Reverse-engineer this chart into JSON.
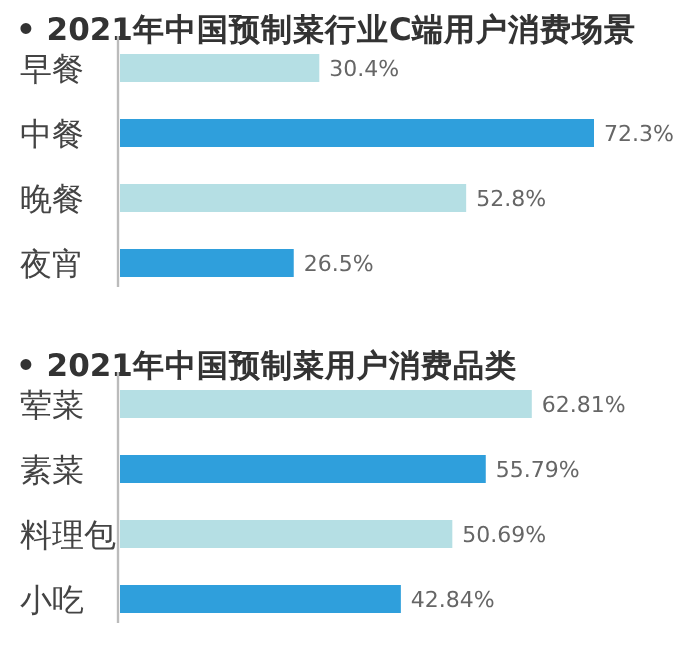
{
  "chart_data": [
    {
      "type": "bar",
      "orientation": "horizontal",
      "title": "• 2021年中国预制菜行业C端用户消费场景",
      "categories": [
        "早餐",
        "中餐",
        "晚餐",
        "夜宵"
      ],
      "values": [
        30.4,
        72.3,
        52.8,
        26.5
      ],
      "value_labels": [
        "30.4%",
        "72.3%",
        "52.8%",
        "26.5%"
      ],
      "colors": [
        "#b5dfe4",
        "#2f9fdc",
        "#b5dfe4",
        "#2f9fdc"
      ]
    },
    {
      "type": "bar",
      "orientation": "horizontal",
      "title": "• 2021年中国预制菜用户消费品类",
      "categories": [
        "荤菜",
        "素菜",
        "料理包",
        "小吃"
      ],
      "values": [
        62.81,
        55.79,
        50.69,
        42.84
      ],
      "value_labels": [
        "62.81%",
        "55.79%",
        "50.69%",
        "42.84%"
      ],
      "colors": [
        "#b5dfe4",
        "#2f9fdc",
        "#b5dfe4",
        "#2f9fdc"
      ]
    }
  ]
}
